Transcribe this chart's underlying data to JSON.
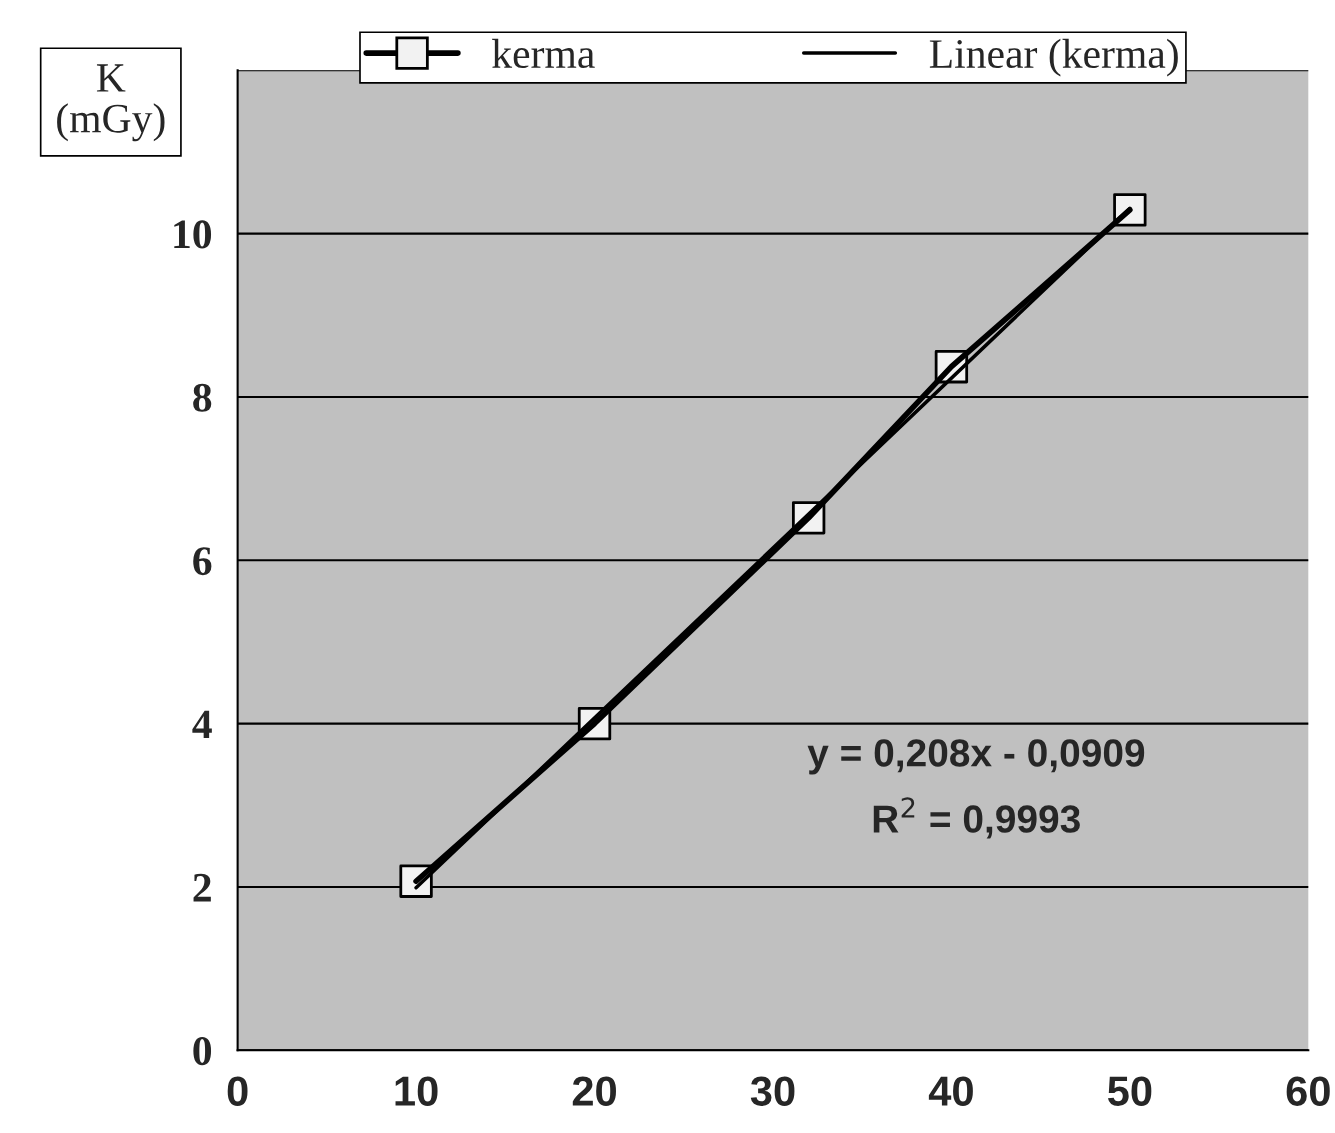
{
  "chart_data": {
    "type": "line",
    "ylabel": "K\n(mGy)",
    "series": [
      {
        "name": "kerma",
        "color": "#000000",
        "x": [
          10,
          20,
          32,
          40,
          50
        ],
        "values": [
          2.07,
          4.0,
          6.52,
          8.37,
          10.29
        ],
        "marker": "square"
      },
      {
        "name": "Linear (kerma)",
        "color": "#000000",
        "x": [
          10,
          50
        ],
        "values": [
          1.99,
          10.31
        ],
        "marker": "none"
      }
    ],
    "xlim": [
      0,
      60
    ],
    "xticks": [
      0,
      10,
      20,
      30,
      40,
      50,
      60
    ],
    "ylim": [
      0,
      12
    ],
    "yticks": [
      0,
      2,
      4,
      6,
      8,
      10,
      {
        "value": 12,
        "label": null
      }
    ],
    "grid": "y",
    "legend": "top",
    "annotations": [
      "y = 0,208x - 0,0909",
      "R$^{2}$ = 0,9993"
    ]
  }
}
